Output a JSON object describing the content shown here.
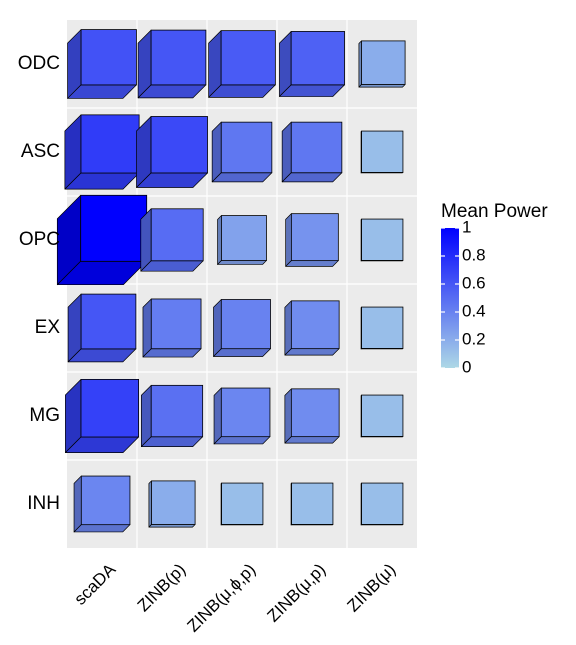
{
  "chart_data": {
    "type": "heatmap",
    "rows": [
      "ODC",
      "ASC",
      "OPC",
      "EX",
      "MG",
      "INH"
    ],
    "columns": [
      "scaDA",
      "ZINB(p)",
      "ZINB(μ,ϕ,p)",
      "ZINB(μ,p)",
      "ZINB(μ)"
    ],
    "values": [
      [
        0.62,
        0.6,
        0.58,
        0.55,
        0.2
      ],
      [
        0.72,
        0.66,
        0.45,
        0.45,
        0.12
      ],
      [
        1.0,
        0.5,
        0.25,
        0.32,
        0.12
      ],
      [
        0.6,
        0.42,
        0.4,
        0.35,
        0.12
      ],
      [
        0.7,
        0.48,
        0.38,
        0.35,
        0.12
      ],
      [
        0.38,
        0.2,
        0.12,
        0.12,
        0.12
      ]
    ],
    "legend": {
      "title": "Mean Power",
      "ticks": [
        "0",
        "0.2",
        "0.4",
        "0.6",
        "0.8",
        "1"
      ],
      "range": [
        0,
        1
      ],
      "low_color": "#add8e6",
      "high_color": "#0000ff",
      "placement": "right"
    },
    "panel_background": "#ebebeb",
    "grid": true
  }
}
